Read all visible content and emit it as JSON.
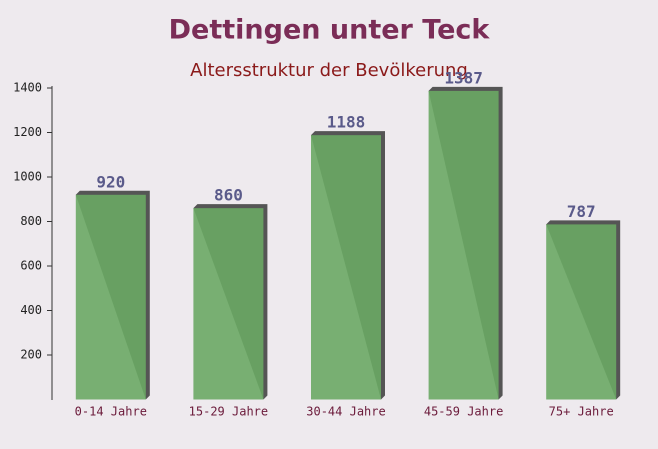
{
  "chart_data": {
    "type": "bar",
    "title": "Dettingen unter Teck",
    "subtitle": "Altersstruktur der Bevölkerung",
    "categories": [
      "0-14 Jahre",
      "15-29 Jahre",
      "30-44 Jahre",
      "45-59 Jahre",
      "75+ Jahre"
    ],
    "values": [
      920,
      860,
      1188,
      1387,
      787
    ],
    "color": "#6aa864",
    "ylim": [
      0,
      1400
    ],
    "yticks": [
      200,
      400,
      600,
      800,
      1000,
      1200,
      1400
    ]
  }
}
